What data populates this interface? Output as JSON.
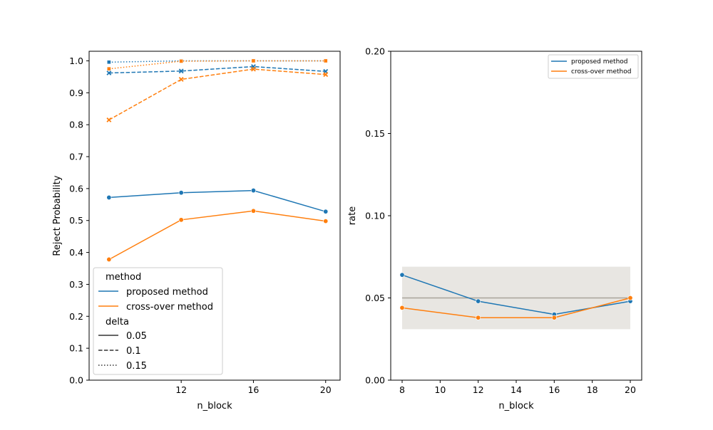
{
  "chart_data": [
    {
      "type": "line",
      "xlabel": "n_block",
      "ylabel": "Reject Probability",
      "xlim": [
        6.9,
        20.8
      ],
      "ylim": [
        0.0,
        1.03
      ],
      "xticks": [
        "12",
        "16",
        "20"
      ],
      "yticks": [
        "0.0",
        "0.1",
        "0.2",
        "0.3",
        "0.4",
        "0.5",
        "0.6",
        "0.7",
        "0.8",
        "0.9",
        "1.0"
      ],
      "x": [
        8,
        12,
        16,
        20
      ],
      "series": [
        {
          "name": "proposed method",
          "delta": "0.05",
          "color": "#1f77b4",
          "dash": "solid",
          "marker": "circle",
          "values": [
            0.572,
            0.587,
            0.594,
            0.528
          ]
        },
        {
          "name": "cross-over method",
          "delta": "0.05",
          "color": "#ff7f0e",
          "dash": "solid",
          "marker": "circle",
          "values": [
            0.378,
            0.502,
            0.53,
            0.498
          ]
        },
        {
          "name": "proposed method",
          "delta": "0.1",
          "color": "#1f77b4",
          "dash": "dashed",
          "marker": "x",
          "values": [
            0.962,
            0.968,
            0.982,
            0.967
          ]
        },
        {
          "name": "cross-over method",
          "delta": "0.1",
          "color": "#ff7f0e",
          "dash": "dashed",
          "marker": "x",
          "values": [
            0.815,
            0.942,
            0.974,
            0.957
          ]
        },
        {
          "name": "proposed method",
          "delta": "0.15",
          "color": "#1f77b4",
          "dash": "dotted",
          "marker": "square",
          "values": [
            0.996,
            1.0,
            1.0,
            1.0
          ]
        },
        {
          "name": "cross-over method",
          "delta": "0.15",
          "color": "#ff7f0e",
          "dash": "dotted",
          "marker": "square",
          "values": [
            0.975,
            0.999,
            1.0,
            1.0
          ]
        }
      ],
      "legend": {
        "position": "bottom-left",
        "method_title": "method",
        "methods": [
          {
            "label": "proposed method",
            "color": "#1f77b4"
          },
          {
            "label": "cross-over method",
            "color": "#ff7f0e"
          }
        ],
        "delta_title": "delta",
        "deltas": [
          {
            "label": "0.05",
            "dash": "solid"
          },
          {
            "label": "0.1",
            "dash": "dashed"
          },
          {
            "label": "0.15",
            "dash": "dotted"
          }
        ]
      }
    },
    {
      "type": "line",
      "xlabel": "n_block",
      "ylabel": "rate",
      "xlim": [
        7.4,
        20.6
      ],
      "ylim": [
        0.0,
        0.2
      ],
      "xticks": [
        "8",
        "10",
        "12",
        "14",
        "16",
        "18",
        "20"
      ],
      "yticks": [
        "0.00",
        "0.05",
        "0.10",
        "0.15",
        "0.20"
      ],
      "x": [
        8,
        12,
        16,
        20
      ],
      "reference_line": 0.05,
      "reference_color": "#a8a39a",
      "band": {
        "low": 0.031,
        "high": 0.069,
        "color": "#e8e6e2"
      },
      "series": [
        {
          "name": "proposed method",
          "color": "#1f77b4",
          "values": [
            0.064,
            0.048,
            0.04,
            0.048
          ]
        },
        {
          "name": "cross-over method",
          "color": "#ff7f0e",
          "values": [
            0.044,
            0.038,
            0.038,
            0.05
          ]
        }
      ],
      "legend": {
        "position": "top-right",
        "entries": [
          {
            "label": "proposed method",
            "color": "#1f77b4"
          },
          {
            "label": "cross-over method",
            "color": "#ff7f0e"
          }
        ]
      }
    }
  ]
}
